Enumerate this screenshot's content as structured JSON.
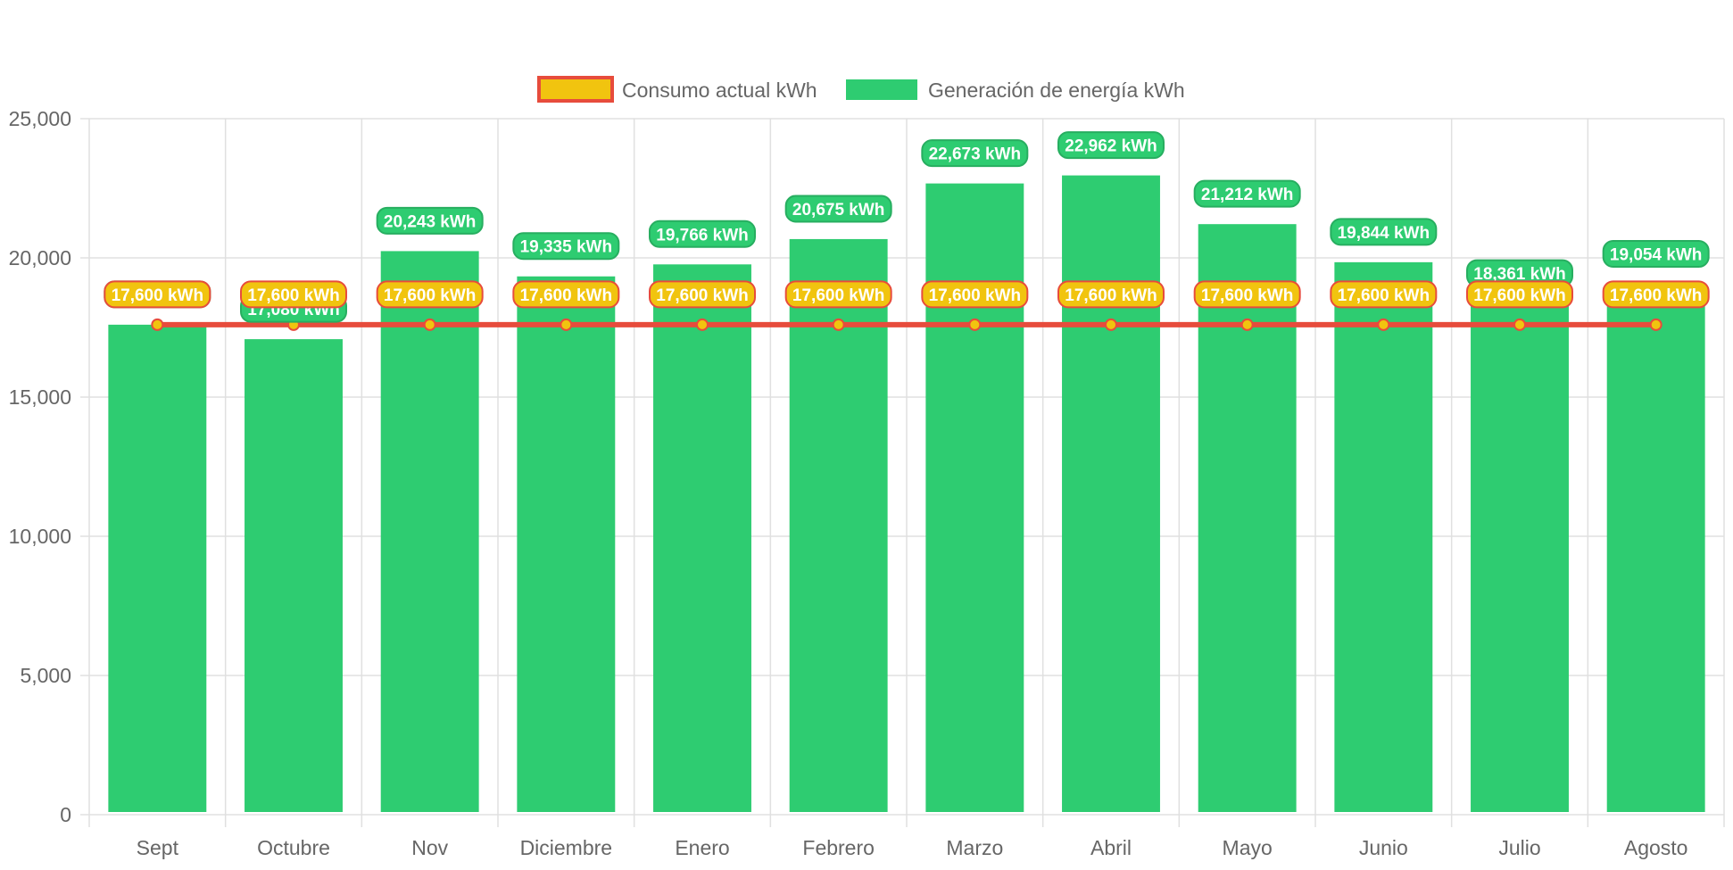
{
  "legend": {
    "consumo_label": "Consumo actual kWh",
    "generacion_label": "Generación de energía kWh"
  },
  "colors": {
    "bar_fill": "#2ecc71",
    "line_stroke": "#e74c3c",
    "point_fill": "#f1c40f",
    "label_consumo_fill": "#f1c40f",
    "label_consumo_stroke": "#e74c3c",
    "label_generacion_fill": "#2ecc71",
    "label_generacion_stroke": "#27ae60",
    "grid": "#e0e0e0",
    "tick_text": "#666666"
  },
  "chart_data": {
    "type": "bar",
    "categories": [
      "Sept",
      "Octubre",
      "Nov",
      "Diciembre",
      "Enero",
      "Febrero",
      "Marzo",
      "Abril",
      "Mayo",
      "Junio",
      "Julio",
      "Agosto"
    ],
    "series": [
      {
        "name": "Consumo actual kWh",
        "type": "line",
        "values": [
          17600,
          17600,
          17600,
          17600,
          17600,
          17600,
          17600,
          17600,
          17600,
          17600,
          17600,
          17600
        ],
        "labels": [
          "17,600 kWh",
          "17,600 kWh",
          "17,600 kWh",
          "17,600 kWh",
          "17,600 kWh",
          "17,600 kWh",
          "17,600 kWh",
          "17,600 kWh",
          "17,600 kWh",
          "17,600 kWh",
          "17,600 kWh",
          "17,600 kWh"
        ]
      },
      {
        "name": "Generación de energía kWh",
        "type": "bar",
        "values": [
          17600,
          17080,
          20243,
          19335,
          19766,
          20675,
          22673,
          22962,
          21212,
          19844,
          18361,
          19054
        ],
        "labels": [
          "17,600 kWh",
          "17,080 kWh",
          "20,243 kWh",
          "19,335 kWh",
          "19,766 kWh",
          "20,675 kWh",
          "22,673 kWh",
          "22,962 kWh",
          "21,212 kWh",
          "19,844 kWh",
          "18,361 kWh",
          "19,054 kWh"
        ]
      }
    ],
    "ylim": [
      0,
      25000
    ],
    "yticks": [
      0,
      5000,
      10000,
      15000,
      20000,
      25000
    ],
    "ytick_labels": [
      "0",
      "5,000",
      "10,000",
      "15,000",
      "20,000",
      "25,000"
    ],
    "grid": true,
    "legend_position": "top"
  }
}
